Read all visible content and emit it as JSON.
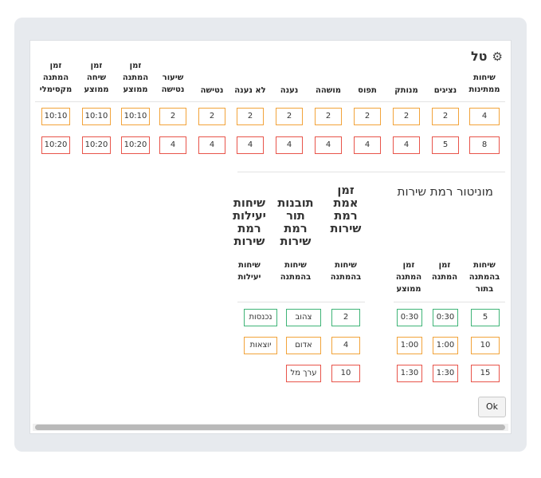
{
  "dialog": {
    "title": "טל",
    "icon": "gears-icon",
    "ok_label": "Ok"
  },
  "colors": {
    "orange": "#f2a33a",
    "red": "#e8544a",
    "green": "#3fb477"
  },
  "metrics": {
    "headers": [
      [
        "שיחות",
        "ממתינות"
      ],
      [
        "נציגים"
      ],
      [
        "מנותק"
      ],
      [
        "תפוס"
      ],
      [
        "מושהה"
      ],
      [
        "נענה"
      ],
      [
        "לא נענה"
      ],
      [
        "נטישה"
      ],
      [
        "שיעור",
        "נטישה"
      ],
      [
        "זמן",
        "המתנה",
        "ממוצע"
      ],
      [
        "זמן",
        "שיחה",
        "ממוצע"
      ],
      [
        "זמן",
        "המתנה",
        "מקסימלי"
      ]
    ],
    "row1": [
      "4",
      "2",
      "2",
      "2",
      "2",
      "2",
      "2",
      "2",
      "2",
      "10:10",
      "10:10",
      "10:10"
    ],
    "row2": [
      "8",
      "5",
      "4",
      "4",
      "4",
      "4",
      "4",
      "4",
      "4",
      "10:20",
      "10:20",
      "10:20"
    ]
  },
  "monitor": {
    "title": "מוניטור רמת שירות",
    "section_titles": [
      [
        "זמן",
        "אמת",
        "רמת",
        "שירות"
      ],
      [
        "תובנות",
        "תור",
        "רמת",
        "שירות"
      ],
      [
        "שיחות",
        "יעילות",
        "רמת",
        "שירות"
      ]
    ],
    "headers": {
      "queue_calls": [
        "שיחות",
        "בהמתנה",
        "בתור"
      ],
      "wait_time": [
        "זמן",
        "המתנה"
      ],
      "avg_wait": [
        "זמן",
        "המתנה",
        "ממוצע"
      ],
      "waiting_calls": [
        "שיחות",
        "בהמתנה"
      ],
      "waiting_calls2": [
        "שיחות",
        "בהמתנה"
      ],
      "efficient_calls": [
        "שיחות",
        "יעילות"
      ]
    },
    "rows": [
      {
        "queue": "5",
        "wait": "0:30",
        "avg": "0:30",
        "waiting": "2",
        "color": "צהוב",
        "efficient": "נכנסות"
      },
      {
        "queue": "10",
        "wait": "1:00",
        "avg": "1:00",
        "waiting": "4",
        "color": "אדום",
        "efficient": "יוצאות"
      },
      {
        "queue": "15",
        "wait": "1:30",
        "avg": "1:30",
        "waiting": "10",
        "color": "ערך מל",
        "efficient": ""
      }
    ]
  }
}
